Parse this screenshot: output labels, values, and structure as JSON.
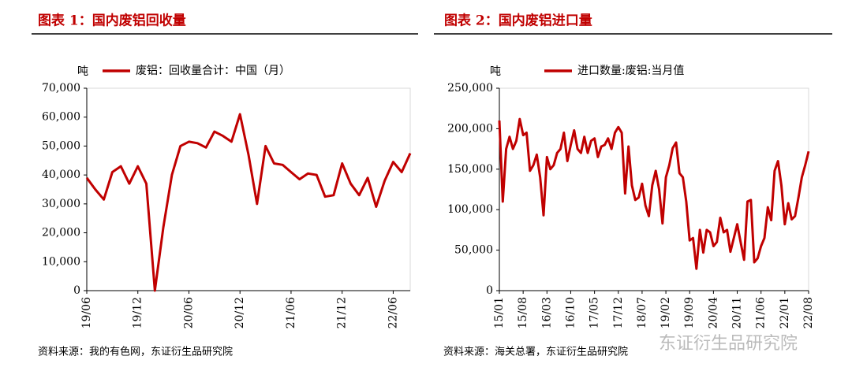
{
  "chart_data": [
    {
      "type": "line",
      "title": "图表 1：国内废铝回收量",
      "unit_label": "吨",
      "source": "资料来源：我的有色网，东证衍生品研究院",
      "ylim": [
        0,
        70000
      ],
      "yticks": [
        0,
        {
          "value": 10000,
          "label": "10,000"
        },
        {
          "value": 20000,
          "label": "20,000"
        },
        {
          "value": 30000,
          "label": "30,000"
        },
        {
          "value": 40000,
          "label": "40,000"
        },
        {
          "value": 50000,
          "label": "50,000"
        },
        {
          "value": 60000,
          "label": "60,000"
        },
        {
          "value": 70000,
          "label": "70,000"
        }
      ],
      "categories": [
        "19/06",
        null,
        null,
        null,
        null,
        null,
        "19/12",
        null,
        null,
        null,
        null,
        null,
        "20/06",
        null,
        null,
        null,
        null,
        null,
        "20/12",
        null,
        null,
        null,
        null,
        null,
        "21/06",
        null,
        null,
        null,
        null,
        null,
        "21/12",
        null,
        null,
        null,
        null,
        null,
        "22/06",
        null,
        null
      ],
      "series": [
        {
          "name": "废铝：回收量合计：中国（月）",
          "color": "#c00000",
          "values": [
            39000,
            35000,
            31500,
            41000,
            43000,
            37000,
            43000,
            37000,
            0,
            22000,
            40000,
            50000,
            51500,
            51000,
            49500,
            55000,
            53500,
            51500,
            61000,
            47000,
            30000,
            50000,
            44000,
            43500,
            41000,
            38500,
            40500,
            40000,
            32500,
            33000,
            44000,
            37000,
            33000,
            39000,
            29000,
            38000,
            44500,
            41000,
            47500
          ]
        }
      ]
    },
    {
      "type": "line",
      "title": "图表 2：国内废铝进口量",
      "unit_label": "吨",
      "source": "资料来源：海关总署，东证衍生品研究院",
      "watermark": "东证衍生品研究院",
      "ylim": [
        0,
        250000
      ],
      "yticks": [
        0,
        {
          "value": 50000,
          "label": "50,000"
        },
        {
          "value": 100000,
          "label": "100,000"
        },
        {
          "value": 150000,
          "label": "150,000"
        },
        {
          "value": 200000,
          "label": "200,000"
        },
        {
          "value": 250000,
          "label": "250,000"
        }
      ],
      "categories": [
        "15/01",
        null,
        null,
        null,
        null,
        null,
        null,
        "15/08",
        null,
        null,
        null,
        null,
        null,
        null,
        "16/03",
        null,
        null,
        null,
        null,
        null,
        null,
        "16/10",
        null,
        null,
        null,
        null,
        null,
        null,
        "17/05",
        null,
        null,
        null,
        null,
        null,
        null,
        "17/12",
        null,
        null,
        null,
        null,
        null,
        null,
        "18/07",
        null,
        null,
        null,
        null,
        null,
        null,
        "19/02",
        null,
        null,
        null,
        null,
        null,
        null,
        "19/09",
        null,
        null,
        null,
        null,
        null,
        null,
        "20/04",
        null,
        null,
        null,
        null,
        null,
        null,
        "20/11",
        null,
        null,
        null,
        null,
        null,
        null,
        "21/06",
        null,
        null,
        null,
        null,
        null,
        null,
        "22/01",
        null,
        null,
        null,
        null,
        null,
        null,
        "22/08"
      ],
      "series": [
        {
          "name": "进口数量:废铝:当月值",
          "color": "#c00000",
          "values": [
            210000,
            110000,
            175000,
            190000,
            175000,
            185000,
            212000,
            192000,
            195000,
            148000,
            155000,
            168000,
            140000,
            93000,
            165000,
            150000,
            155000,
            170000,
            175000,
            195000,
            160000,
            180000,
            198000,
            175000,
            170000,
            190000,
            170000,
            185000,
            188000,
            165000,
            178000,
            180000,
            188000,
            175000,
            195000,
            202000,
            195000,
            120000,
            178000,
            130000,
            112000,
            115000,
            132000,
            105000,
            92000,
            130000,
            148000,
            125000,
            83000,
            140000,
            155000,
            176000,
            183000,
            145000,
            140000,
            110000,
            62000,
            65000,
            27000,
            75000,
            47000,
            75000,
            72000,
            55000,
            60000,
            90000,
            72000,
            75000,
            48000,
            65000,
            82000,
            60000,
            38000,
            110000,
            112000,
            35000,
            40000,
            55000,
            65000,
            103000,
            87000,
            148000,
            160000,
            130000,
            82000,
            108000,
            88000,
            92000,
            115000,
            140000,
            155000,
            172000
          ]
        }
      ]
    }
  ]
}
